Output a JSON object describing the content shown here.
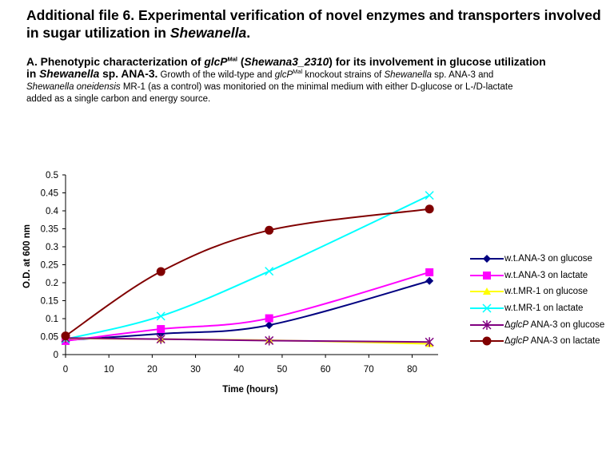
{
  "header": {
    "title_line1": "Additional file 6. Experimental verification of novel enzymes and transporters involved",
    "title_line2_prefix": "in sugar utilization in ",
    "title_line2_italic": "Shewanella",
    "title_line2_suffix": "."
  },
  "section": {
    "a_prefix": "A.   Phenotypic characterization of ",
    "a_gene": "glcP",
    "a_sup": "Mal",
    "a_open": " (",
    "a_locus": "Shewana3_2310",
    "a_close": ") for its involvement in glucose utilization",
    "b_in": "in ",
    "b_genus": "Shewanella",
    "b_strain": " sp. ANA-3.",
    "b_text1": " Growth of the wild-type and ",
    "b_gene": "glcP",
    "b_sup": "Mal",
    "b_text2": " knockout strains of ",
    "b_genus2": "Shewanella",
    "b_text3": " sp. ANA-3 and",
    "c_species": "Shewanella oneidensis",
    "c_text": " MR-1 (as a control) was monitoried on the minimal medium with either D-glucose or L-/D-lactate",
    "d_text": "added as a single carbon and energy source."
  },
  "chart_data": {
    "type": "line",
    "title": "",
    "xlabel": "Time (hours)",
    "ylabel": "O.D. at 600 nm",
    "xlim": [
      0,
      86
    ],
    "ylim": [
      0,
      0.5
    ],
    "xticks": [
      0,
      10,
      20,
      30,
      40,
      50,
      60,
      70,
      80
    ],
    "yticks": [
      0,
      0.05,
      0.1,
      0.15,
      0.2,
      0.25,
      0.3,
      0.35,
      0.4,
      0.45,
      0.5
    ],
    "ytick_labels": [
      "0",
      "0.05",
      "0.1",
      "0.15",
      "0.2",
      "0.25",
      "0.3",
      "0.35",
      "0.4",
      "0.45",
      "0.5"
    ],
    "grid": false,
    "legend_position": "right",
    "x": [
      0,
      22,
      47,
      84
    ],
    "series": [
      {
        "name": "w.t.ANA-3 on glucose",
        "name_prefix": "",
        "name_italic": "",
        "name_suffix": "w.t.ANA-3 on glucose",
        "color": "#000080",
        "marker": "diamond",
        "values": [
          0.04,
          0.058,
          0.082,
          0.205
        ]
      },
      {
        "name": "w.t.ANA-3 on lactate",
        "name_prefix": "",
        "name_italic": "",
        "name_suffix": "w.t.ANA-3 on lactate",
        "color": "#ff00ff",
        "marker": "square",
        "values": [
          0.038,
          0.071,
          0.101,
          0.229
        ]
      },
      {
        "name": "w.t.MR-1 on glucose",
        "name_prefix": "",
        "name_italic": "",
        "name_suffix": "w.t.MR-1 on glucose",
        "color": "#ffff00",
        "marker": "triangle",
        "values": [
          0.045,
          0.043,
          0.04,
          0.03
        ]
      },
      {
        "name": "w.t.MR-1 on lactate",
        "name_prefix": "",
        "name_italic": "",
        "name_suffix": "w.t.MR-1 on lactate",
        "color": "#00ffff",
        "marker": "x",
        "values": [
          0.043,
          0.107,
          0.232,
          0.443
        ]
      },
      {
        "name": "ΔglcP ANA-3 on glucose",
        "name_prefix": "Δ",
        "name_italic": "glcP",
        "name_suffix": " ANA-3 on glucose",
        "color": "#800080",
        "marker": "star",
        "values": [
          0.046,
          0.043,
          0.039,
          0.035
        ]
      },
      {
        "name": "ΔglcP ANA-3 on lactate",
        "name_prefix": "Δ",
        "name_italic": "glcP",
        "name_suffix": " ANA-3 on lactate",
        "color": "#800000",
        "marker": "circle",
        "values": [
          0.052,
          0.231,
          0.346,
          0.405
        ]
      }
    ]
  }
}
